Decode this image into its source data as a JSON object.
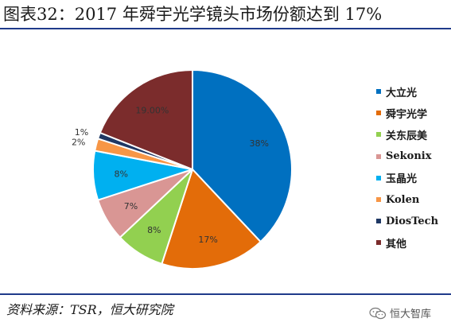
{
  "header": {
    "title": "图表32：2017 年舜宇光学镜头市场份额达到 17%"
  },
  "footer": {
    "source": "资料来源：TSR，恒大研究院",
    "watermark": "恒大智库",
    "watermark_icon": "wechat-icon"
  },
  "chart_data": {
    "type": "pie",
    "title": "",
    "start_angle_deg": 0,
    "direction": "clockwise",
    "legend_position": "right",
    "slices": [
      {
        "name": "大立光",
        "value": 38,
        "label": "38%",
        "color": "#0070C0"
      },
      {
        "name": "舜宇光学",
        "value": 17,
        "label": "17%",
        "color": "#E36C09"
      },
      {
        "name": "关东辰美",
        "value": 8,
        "label": "8%",
        "color": "#92D050"
      },
      {
        "name": "Sekonix",
        "value": 7,
        "label": "7%",
        "color": "#D99694"
      },
      {
        "name": "玉晶光",
        "value": 8,
        "label": "8%",
        "color": "#00B0F0"
      },
      {
        "name": "Kolen",
        "value": 2,
        "label": "2%",
        "color": "#F79646"
      },
      {
        "name": "DiosTech",
        "value": 1,
        "label": "1%",
        "color": "#1F3864"
      },
      {
        "name": "其他",
        "value": 19,
        "label": "19.00%",
        "color": "#7B2C2C"
      }
    ]
  }
}
